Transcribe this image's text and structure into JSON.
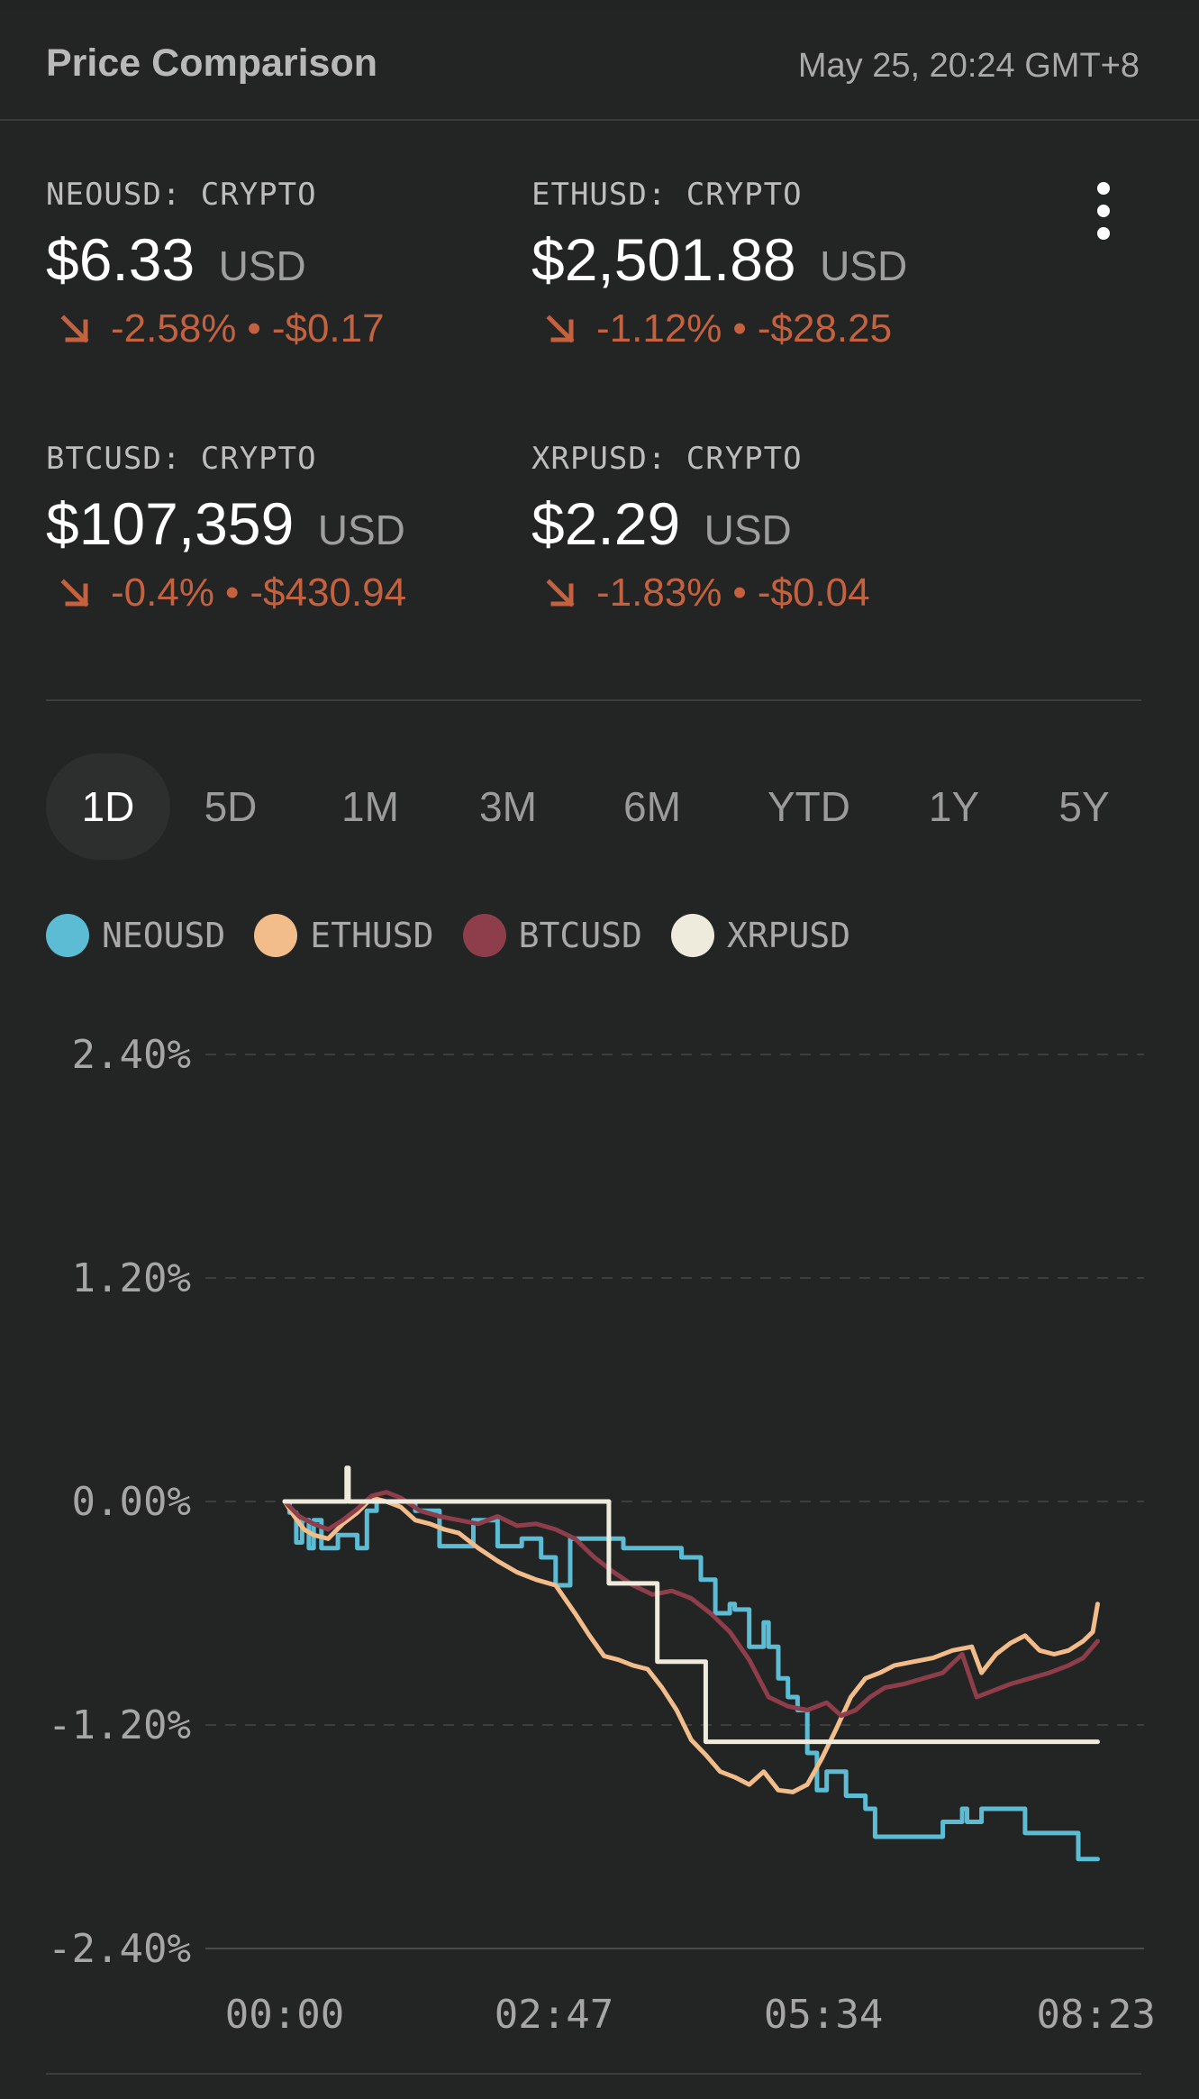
{
  "header": {
    "title": "Price Comparison",
    "timestamp": "May 25, 20:24 GMT+8"
  },
  "icons": {
    "menu": "more-vert-icon",
    "trend": "arrow-down-right-icon"
  },
  "colors": {
    "negative": "#c4613f",
    "neo": "#5bbcd3",
    "eth": "#f2bd8a",
    "btc": "#8e3e4a",
    "xrp": "#efebdc"
  },
  "tickers": [
    {
      "symbol": "NEOUSD: CRYPTO",
      "price": "$6.33",
      "currency": "USD",
      "pct": "-2.58%",
      "abs": "-$0.17"
    },
    {
      "symbol": "ETHUSD: CRYPTO",
      "price": "$2,501.88",
      "currency": "USD",
      "pct": "-1.12%",
      "abs": "-$28.25"
    },
    {
      "symbol": "BTCUSD: CRYPTO",
      "price": "$107,359",
      "currency": "USD",
      "pct": "-0.4%",
      "abs": "-$430.94"
    },
    {
      "symbol": "XRPUSD: CRYPTO",
      "price": "$2.29",
      "currency": "USD",
      "pct": "-1.83%",
      "abs": "-$0.04"
    }
  ],
  "ranges": [
    "1D",
    "5D",
    "1M",
    "3M",
    "6M",
    "YTD",
    "1Y",
    "5Y"
  ],
  "selected_range": "1D",
  "chart_data": {
    "type": "line",
    "ylim": [
      -2.4,
      2.4
    ],
    "ytick_values": [
      2.4,
      1.2,
      0.0,
      -1.2,
      -2.4
    ],
    "yticks": [
      "2.40%",
      "1.20%",
      "0.00%",
      "-1.20%",
      "-2.40%"
    ],
    "xlim": [
      0,
      8.6
    ],
    "xtick_values": [
      0,
      2.783,
      5.567,
      8.383
    ],
    "xticks": [
      "00:00",
      "02:47",
      "05:34",
      "08:23"
    ],
    "grid": true,
    "legend_position": "top-left",
    "series": [
      {
        "name": "NEOUSD",
        "color": "#5bbcd3",
        "step": true,
        "x": [
          0,
          0.05,
          0.12,
          0.18,
          0.25,
          0.3,
          0.38,
          0.45,
          0.55,
          0.65,
          0.75,
          0.85,
          0.95,
          1.05,
          1.2,
          1.35,
          1.5,
          1.6,
          1.75,
          1.85,
          1.95,
          2.05,
          2.2,
          2.3,
          2.45,
          2.55,
          2.65,
          2.8,
          2.95,
          3.2,
          3.5,
          3.6,
          3.8,
          3.9,
          4.0,
          4.1,
          4.2,
          4.3,
          4.35,
          4.45,
          4.5,
          4.6,
          4.65,
          4.75,
          4.8,
          4.9,
          4.95,
          5.0,
          5.05,
          5.1,
          5.2,
          5.3,
          5.4,
          5.5,
          5.6,
          5.8,
          6.0,
          6.1,
          6.2,
          6.35,
          6.6,
          6.8,
          7.0,
          7.05,
          7.15,
          7.2,
          7.4,
          7.5,
          7.6,
          7.65,
          7.7,
          7.9,
          8.0,
          8.2,
          8.4
        ],
        "values": [
          0.0,
          -0.06,
          -0.22,
          -0.1,
          -0.25,
          -0.1,
          -0.25,
          -0.25,
          -0.18,
          -0.18,
          -0.25,
          -0.05,
          0.0,
          0.0,
          0.0,
          -0.05,
          -0.05,
          -0.24,
          -0.24,
          -0.24,
          -0.1,
          -0.1,
          -0.24,
          -0.24,
          -0.2,
          -0.2,
          -0.3,
          -0.45,
          -0.2,
          -0.2,
          -0.25,
          -0.25,
          -0.25,
          -0.25,
          -0.25,
          -0.3,
          -0.3,
          -0.42,
          -0.42,
          -0.6,
          -0.6,
          -0.55,
          -0.58,
          -0.58,
          -0.78,
          -0.78,
          -0.65,
          -0.78,
          -0.78,
          -0.95,
          -1.05,
          -1.12,
          -1.35,
          -1.55,
          -1.45,
          -1.58,
          -1.65,
          -1.8,
          -1.8,
          -1.8,
          -1.8,
          -1.72,
          -1.65,
          -1.72,
          -1.72,
          -1.65,
          -1.65,
          -1.65,
          -1.65,
          -1.78,
          -1.78,
          -1.78,
          -1.78,
          -1.92,
          -1.92
        ],
        "values_note": ""
      },
      {
        "name": "ETHUSD",
        "color": "#f2bd8a",
        "step": false,
        "x": [
          0,
          0.1,
          0.2,
          0.3,
          0.45,
          0.6,
          0.75,
          0.9,
          1.05,
          1.2,
          1.35,
          1.5,
          1.65,
          1.8,
          2.0,
          2.2,
          2.4,
          2.6,
          2.8,
          3.0,
          3.15,
          3.3,
          3.45,
          3.6,
          3.75,
          3.9,
          4.05,
          4.2,
          4.35,
          4.5,
          4.65,
          4.8,
          4.95,
          5.1,
          5.25,
          5.4,
          5.55,
          5.7,
          5.85,
          6.0,
          6.15,
          6.3,
          6.5,
          6.7,
          6.9,
          7.1,
          7.2,
          7.35,
          7.5,
          7.65,
          7.8,
          7.95,
          8.1,
          8.25,
          8.35,
          8.4
        ],
        "values": [
          0.0,
          -0.08,
          -0.15,
          -0.18,
          -0.2,
          -0.12,
          -0.06,
          0.02,
          0.0,
          -0.03,
          -0.1,
          -0.12,
          -0.15,
          -0.17,
          -0.25,
          -0.32,
          -0.38,
          -0.42,
          -0.45,
          -0.6,
          -0.72,
          -0.83,
          -0.85,
          -0.88,
          -0.9,
          -1.0,
          -1.12,
          -1.28,
          -1.36,
          -1.45,
          -1.48,
          -1.52,
          -1.45,
          -1.55,
          -1.56,
          -1.52,
          -1.38,
          -1.22,
          -1.05,
          -0.95,
          -0.92,
          -0.88,
          -0.86,
          -0.84,
          -0.8,
          -0.78,
          -0.92,
          -0.82,
          -0.76,
          -0.72,
          -0.8,
          -0.82,
          -0.8,
          -0.75,
          -0.7,
          -0.55
        ],
        "values_note": ""
      },
      {
        "name": "BTCUSD",
        "color": "#8e3e4a",
        "step": false,
        "x": [
          0,
          0.15,
          0.3,
          0.45,
          0.6,
          0.75,
          0.9,
          1.05,
          1.2,
          1.4,
          1.6,
          1.8,
          2.0,
          2.2,
          2.4,
          2.6,
          2.8,
          3.0,
          3.2,
          3.4,
          3.6,
          3.8,
          4.0,
          4.2,
          4.4,
          4.6,
          4.8,
          5.0,
          5.2,
          5.4,
          5.6,
          5.75,
          5.9,
          6.05,
          6.2,
          6.4,
          6.6,
          6.8,
          7.0,
          7.15,
          7.3,
          7.5,
          7.7,
          7.9,
          8.1,
          8.25,
          8.4
        ],
        "values": [
          0.0,
          -0.08,
          -0.12,
          -0.15,
          -0.1,
          -0.04,
          0.03,
          0.05,
          0.02,
          -0.05,
          -0.08,
          -0.1,
          -0.12,
          -0.08,
          -0.13,
          -0.12,
          -0.15,
          -0.2,
          -0.3,
          -0.38,
          -0.45,
          -0.5,
          -0.48,
          -0.52,
          -0.6,
          -0.7,
          -0.85,
          -1.05,
          -1.1,
          -1.12,
          -1.08,
          -1.15,
          -1.12,
          -1.05,
          -1.0,
          -0.98,
          -0.95,
          -0.92,
          -0.82,
          -1.05,
          -1.02,
          -0.98,
          -0.95,
          -0.92,
          -0.88,
          -0.84,
          -0.75
        ],
        "values_note": ""
      },
      {
        "name": "XRPUSD",
        "color": "#efebdc",
        "step": true,
        "x": [
          0,
          0.62,
          0.64,
          0.66,
          0.68,
          3.35,
          3.85,
          4.35,
          4.95,
          8.4
        ],
        "values": [
          0.0,
          0.0,
          0.18,
          0.0,
          0.0,
          -0.44,
          -0.86,
          -1.29,
          -1.29,
          -1.29
        ],
        "values_note": ""
      }
    ]
  }
}
